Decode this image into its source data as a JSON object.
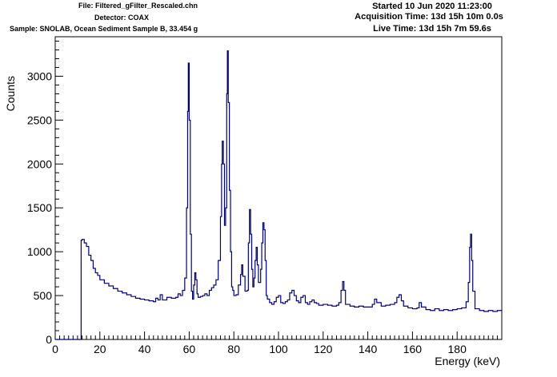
{
  "header": {
    "file": "File: Filtered_gFilter_Rescaled.chn",
    "detector": "Detector: COAX",
    "sample": "Sample: SNOLAB, Ocean Sediment Sample B, 33.454 g",
    "started": "Started 10 Jun 2020 11:23:00",
    "acquisition_time": "Acquisition Time: 13d 15h 10m 0.0s",
    "live_time": "Live Time: 13d 15h 7m 59.6s"
  },
  "chart_data": {
    "type": "line",
    "title": "",
    "xlabel": "Energy (keV)",
    "ylabel": "Counts",
    "xlim": [
      0,
      200
    ],
    "ylim": [
      0,
      3450
    ],
    "x_ticks": [
      0,
      20,
      40,
      60,
      80,
      100,
      120,
      140,
      160,
      180
    ],
    "y_ticks": [
      0,
      500,
      1000,
      1500,
      2000,
      2500,
      3000
    ],
    "line_color": "#000080",
    "grid": false,
    "series": [
      {
        "points": [
          [
            0,
            0
          ],
          [
            11.5,
            0
          ],
          [
            11.6,
            1130
          ],
          [
            12,
            1140
          ],
          [
            13,
            1100
          ],
          [
            14,
            1060
          ],
          [
            15,
            960
          ],
          [
            16,
            900
          ],
          [
            17,
            810
          ],
          [
            18,
            760
          ],
          [
            19,
            730
          ],
          [
            20,
            680
          ],
          [
            22,
            640
          ],
          [
            24,
            610
          ],
          [
            26,
            580
          ],
          [
            28,
            550
          ],
          [
            30,
            530
          ],
          [
            32,
            510
          ],
          [
            34,
            490
          ],
          [
            36,
            470
          ],
          [
            38,
            460
          ],
          [
            40,
            450
          ],
          [
            42,
            440
          ],
          [
            44,
            430
          ],
          [
            45,
            470
          ],
          [
            46,
            450
          ],
          [
            47,
            510
          ],
          [
            48,
            450
          ],
          [
            50,
            480
          ],
          [
            52,
            470
          ],
          [
            54,
            480
          ],
          [
            55,
            520
          ],
          [
            56,
            500
          ],
          [
            57,
            560
          ],
          [
            58,
            700
          ],
          [
            58.8,
            1500
          ],
          [
            59.3,
            2600
          ],
          [
            59.6,
            3150
          ],
          [
            60,
            2500
          ],
          [
            60.5,
            1200
          ],
          [
            61,
            550
          ],
          [
            61.5,
            460
          ],
          [
            62,
            620
          ],
          [
            62.5,
            760
          ],
          [
            63,
            680
          ],
          [
            63.5,
            520
          ],
          [
            64,
            480
          ],
          [
            65,
            490
          ],
          [
            66,
            500
          ],
          [
            67,
            520
          ],
          [
            68,
            500
          ],
          [
            69,
            560
          ],
          [
            70,
            590
          ],
          [
            71,
            620
          ],
          [
            72,
            680
          ],
          [
            73,
            900
          ],
          [
            74,
            1400
          ],
          [
            74.5,
            2000
          ],
          [
            74.8,
            2260
          ],
          [
            75.3,
            2000
          ],
          [
            75.8,
            1300
          ],
          [
            76.3,
            1500
          ],
          [
            76.8,
            2800
          ],
          [
            77.1,
            3290
          ],
          [
            77.5,
            2700
          ],
          [
            78,
            1700
          ],
          [
            78.5,
            1000
          ],
          [
            79,
            600
          ],
          [
            79.5,
            560
          ],
          [
            80,
            500
          ],
          [
            81,
            510
          ],
          [
            82,
            620
          ],
          [
            83,
            740
          ],
          [
            83.5,
            850
          ],
          [
            84,
            720
          ],
          [
            85,
            550
          ],
          [
            86,
            560
          ],
          [
            86.5,
            1100
          ],
          [
            87,
            1480
          ],
          [
            87.5,
            1200
          ],
          [
            88,
            800
          ],
          [
            88.5,
            600
          ],
          [
            89,
            700
          ],
          [
            89.5,
            900
          ],
          [
            90,
            1050
          ],
          [
            90.5,
            850
          ],
          [
            91,
            650
          ],
          [
            92,
            800
          ],
          [
            92.5,
            1100
          ],
          [
            93,
            1330
          ],
          [
            93.5,
            1250
          ],
          [
            94,
            900
          ],
          [
            94.5,
            500
          ],
          [
            95,
            460
          ],
          [
            96,
            420
          ],
          [
            97,
            400
          ],
          [
            98,
            430
          ],
          [
            99,
            480
          ],
          [
            100,
            500
          ],
          [
            101,
            420
          ],
          [
            102,
            410
          ],
          [
            103,
            430
          ],
          [
            104,
            450
          ],
          [
            105,
            530
          ],
          [
            106,
            560
          ],
          [
            107,
            500
          ],
          [
            108,
            440
          ],
          [
            109,
            420
          ],
          [
            110,
            480
          ],
          [
            111,
            500
          ],
          [
            112,
            420
          ],
          [
            113,
            400
          ],
          [
            114,
            430
          ],
          [
            115,
            450
          ],
          [
            116,
            420
          ],
          [
            117,
            410
          ],
          [
            118,
            390
          ],
          [
            120,
            400
          ],
          [
            122,
            390
          ],
          [
            124,
            380
          ],
          [
            126,
            390
          ],
          [
            127,
            420
          ],
          [
            128,
            560
          ],
          [
            128.7,
            660
          ],
          [
            129.3,
            560
          ],
          [
            130,
            400
          ],
          [
            132,
            380
          ],
          [
            134,
            370
          ],
          [
            136,
            380
          ],
          [
            138,
            370
          ],
          [
            140,
            370
          ],
          [
            142,
            400
          ],
          [
            143,
            460
          ],
          [
            144,
            420
          ],
          [
            146,
            380
          ],
          [
            148,
            390
          ],
          [
            150,
            400
          ],
          [
            152,
            420
          ],
          [
            153,
            480
          ],
          [
            154,
            510
          ],
          [
            155,
            440
          ],
          [
            156,
            380
          ],
          [
            158,
            360
          ],
          [
            160,
            350
          ],
          [
            162,
            360
          ],
          [
            163,
            420
          ],
          [
            164,
            370
          ],
          [
            166,
            340
          ],
          [
            168,
            330
          ],
          [
            170,
            350
          ],
          [
            172,
            330
          ],
          [
            174,
            340
          ],
          [
            176,
            330
          ],
          [
            178,
            340
          ],
          [
            180,
            350
          ],
          [
            182,
            360
          ],
          [
            184,
            430
          ],
          [
            185,
            650
          ],
          [
            185.6,
            1050
          ],
          [
            186,
            1200
          ],
          [
            186.5,
            900
          ],
          [
            187,
            550
          ],
          [
            188,
            350
          ],
          [
            190,
            330
          ],
          [
            192,
            320
          ],
          [
            194,
            330
          ],
          [
            196,
            320
          ],
          [
            198,
            330
          ],
          [
            200,
            340
          ]
        ]
      }
    ]
  }
}
